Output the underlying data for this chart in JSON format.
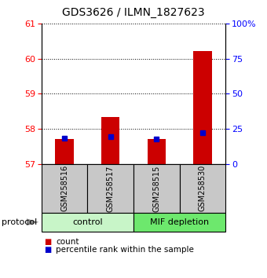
{
  "title": "GDS3626 / ILMN_1827623",
  "samples": [
    "GSM258516",
    "GSM258517",
    "GSM258515",
    "GSM258530"
  ],
  "count_values": [
    57.72,
    58.35,
    57.72,
    60.22
  ],
  "percentile_values": [
    18.5,
    19.5,
    18.0,
    22.5
  ],
  "ylim_left": [
    57,
    61
  ],
  "ylim_right": [
    0,
    100
  ],
  "yticks_left": [
    57,
    58,
    59,
    60,
    61
  ],
  "yticks_right": [
    0,
    25,
    50,
    75,
    100
  ],
  "ytick_labels_right": [
    "0",
    "25",
    "50",
    "75",
    "100%"
  ],
  "groups": [
    {
      "label": "control",
      "indices": [
        0,
        1
      ],
      "color_light": "#c8f5c8",
      "color_dark": "#90ee90"
    },
    {
      "label": "MIF depletion",
      "indices": [
        2,
        3
      ],
      "color_light": "#70e870",
      "color_dark": "#40d040"
    }
  ],
  "bar_color_red": "#CC0000",
  "bar_color_blue": "#0000CC",
  "bar_width": 0.4,
  "sample_box_color": "#C8C8C8",
  "background_color": "#ffffff",
  "title_fontsize": 10,
  "tick_fontsize": 8,
  "protocol_label": "protocol"
}
